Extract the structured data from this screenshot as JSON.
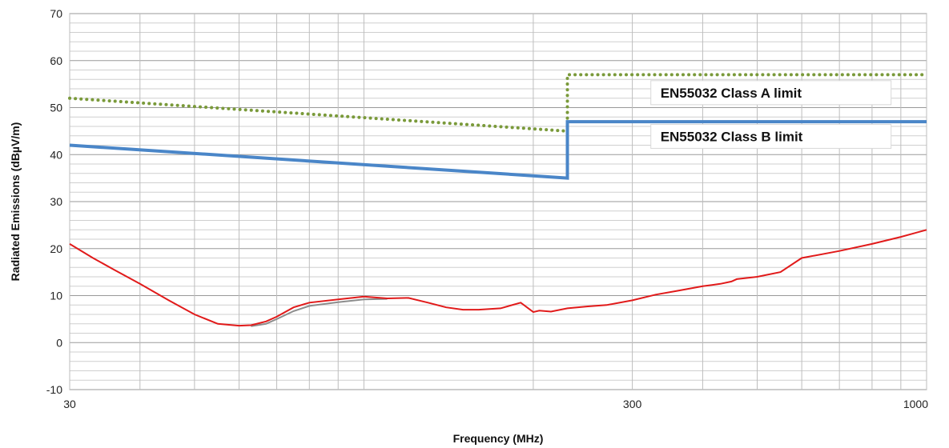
{
  "chart_data": {
    "type": "line",
    "xlabel": "Frequency (MHz)",
    "ylabel": "Radiated Emissions (dBµV/m)",
    "xscale": "log",
    "xlim": [
      30,
      1000
    ],
    "ylim": [
      -10,
      70
    ],
    "grid": true,
    "x_tick_labels": [
      {
        "value": 30,
        "label": "30"
      },
      {
        "value": 300,
        "label": "300"
      },
      {
        "value": 1000,
        "label": "1000"
      }
    ],
    "y_ticks": [
      -10,
      0,
      10,
      20,
      30,
      40,
      50,
      60,
      70
    ],
    "annotations": [
      {
        "text": "EN55032 Class A limit",
        "x": 330,
        "y": 52.5
      },
      {
        "text": "EN55032 Class B limit",
        "x": 330,
        "y": 43.2
      }
    ],
    "series": [
      {
        "color": "#7a9a3a",
        "style": "dotted",
        "x": [
          30,
          230,
          230,
          1000
        ],
        "y": [
          52,
          45,
          57,
          57
        ]
      },
      {
        "color": "#4a86c8",
        "style": "solid",
        "x": [
          30,
          230,
          230,
          1000
        ],
        "y": [
          42,
          35,
          47,
          47
        ]
      },
      {
        "color": "#e11a1a",
        "style": "solid",
        "x": [
          30,
          33,
          36,
          40,
          45,
          50,
          55,
          60,
          63,
          67,
          70,
          75,
          80,
          90,
          100,
          110,
          120,
          130,
          140,
          150,
          160,
          175,
          190,
          200,
          205,
          215,
          230,
          250,
          270,
          300,
          330,
          360,
          400,
          430,
          450,
          460,
          500,
          550,
          600,
          700,
          800,
          900,
          1000
        ],
        "y": [
          21,
          18,
          15.5,
          12.5,
          9,
          6,
          4,
          3.6,
          3.7,
          4.5,
          5.5,
          7.5,
          8.5,
          9.2,
          9.8,
          9.4,
          9.5,
          8.5,
          7.5,
          7,
          7,
          7.3,
          8.5,
          6.5,
          6.8,
          6.6,
          7.3,
          7.7,
          8,
          9,
          10.2,
          11,
          12,
          12.5,
          13,
          13.5,
          14,
          15,
          18,
          19.5,
          21,
          22.5,
          24
        ]
      },
      {
        "color": "#8c8c8c",
        "style": "solid",
        "x": [
          63,
          67,
          70,
          75,
          80,
          90,
          100,
          110
        ],
        "y": [
          3.5,
          4,
          5,
          6.7,
          7.8,
          8.6,
          9.2,
          9.3
        ]
      }
    ]
  }
}
